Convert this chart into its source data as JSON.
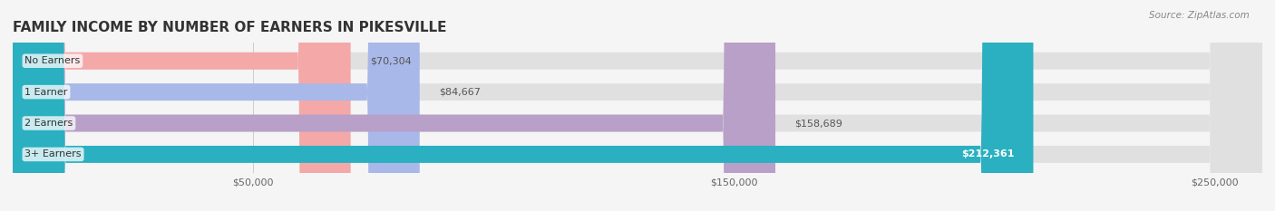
{
  "title": "FAMILY INCOME BY NUMBER OF EARNERS IN PIKESVILLE",
  "source": "Source: ZipAtlas.com",
  "categories": [
    "No Earners",
    "1 Earner",
    "2 Earners",
    "3+ Earners"
  ],
  "values": [
    70304,
    84667,
    158689,
    212361
  ],
  "bar_colors": [
    "#f4a8a8",
    "#a8b8e8",
    "#b8a0c8",
    "#2ab0c0"
  ],
  "label_colors": [
    "#555555",
    "#555555",
    "#555555",
    "#ffffff"
  ],
  "bar_bg_color": "#e0e0e0",
  "xlim": [
    0,
    260000
  ],
  "xticks": [
    50000,
    150000,
    250000
  ],
  "xtick_labels": [
    "$50,000",
    "$150,000",
    "$250,000"
  ],
  "figsize": [
    14.06,
    2.33
  ],
  "dpi": 100,
  "title_fontsize": 11,
  "bar_label_fontsize": 8,
  "category_fontsize": 8,
  "xtick_fontsize": 8,
  "bar_height": 0.55,
  "rounding_size": 11000
}
